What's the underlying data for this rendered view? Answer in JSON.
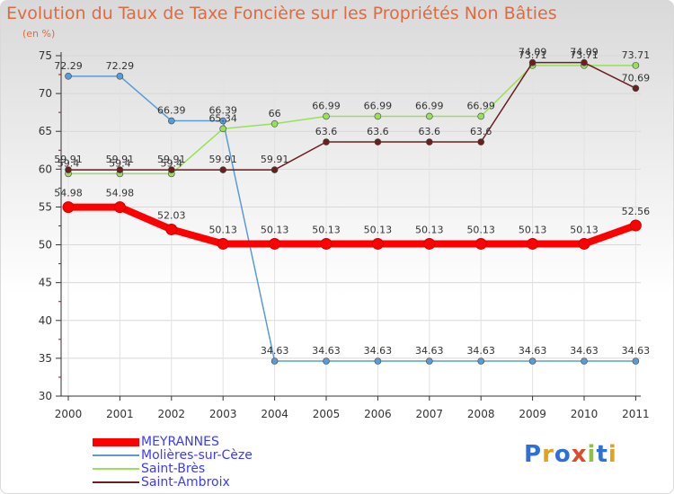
{
  "title": "Evolution du Taux de Taxe Foncière sur les Propriétés Non Bâties",
  "unit_label": "(en %)",
  "logo_text": "Proxiti",
  "chart_data": {
    "type": "line",
    "categories": [
      "2000",
      "2001",
      "2002",
      "2003",
      "2004",
      "2005",
      "2006",
      "2007",
      "2008",
      "2009",
      "2010",
      "2011"
    ],
    "ylim": [
      30,
      75
    ],
    "yticks": [
      30,
      35,
      40,
      45,
      50,
      55,
      60,
      65,
      70,
      75
    ],
    "grid": true,
    "legend_position": "bottom-left",
    "series": [
      {
        "name": "MEYRANNES",
        "color": "#ff0000",
        "values": [
          54.98,
          54.98,
          52.03,
          50.13,
          50.13,
          50.13,
          50.13,
          50.13,
          50.13,
          50.13,
          50.13,
          52.56
        ],
        "labels": [
          "54.98",
          "54.98",
          "52.03",
          "50.13",
          "50.13",
          "50.13",
          "50.13",
          "50.13",
          "50.13",
          "50.13",
          "50.13",
          "52.56"
        ]
      },
      {
        "name": "Molières-sur-Cèze",
        "color": "#5b9bd5",
        "values": [
          72.29,
          72.29,
          66.39,
          66.39,
          34.63,
          34.63,
          34.63,
          34.63,
          34.63,
          34.63,
          34.63,
          34.63
        ],
        "labels": [
          "72.29",
          "72.29",
          "66.39",
          "66.39",
          "34.63",
          "34.63",
          "34.63",
          "34.63",
          "34.63",
          "34.63",
          "34.63",
          "34.63"
        ]
      },
      {
        "name": "Saint-Brès",
        "color": "#99e05a",
        "values": [
          59.4,
          59.4,
          59.4,
          65.34,
          66,
          66.99,
          66.99,
          66.99,
          66.99,
          73.71,
          73.71,
          73.71
        ],
        "labels": [
          "59.4",
          "59.4",
          "59.4",
          "65.34",
          "66",
          "66.99",
          "66.99",
          "66.99",
          "66.99",
          "73.71",
          "73.71",
          "73.71"
        ]
      },
      {
        "name": "Saint-Ambroix",
        "color": "#6b1f1f",
        "values": [
          59.91,
          59.91,
          59.91,
          59.91,
          59.91,
          63.6,
          63.6,
          63.6,
          63.6,
          74.09,
          74.09,
          70.69
        ],
        "labels": [
          "59.91",
          "59.91",
          "59.91",
          "59.91",
          "59.91",
          "63.6",
          "63.6",
          "63.6",
          "63.6",
          "74.09",
          "74.09",
          "70.69"
        ]
      }
    ]
  }
}
